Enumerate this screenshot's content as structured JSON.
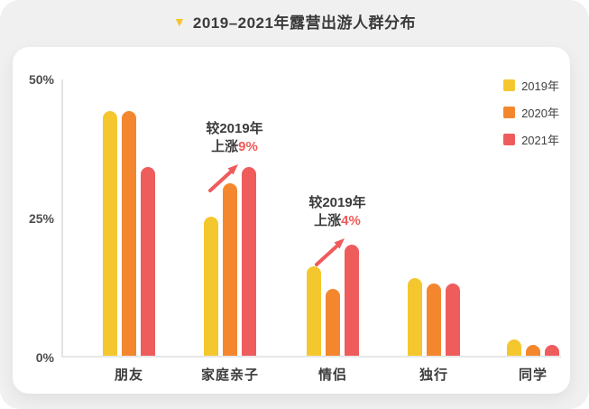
{
  "title": {
    "marker": "▼",
    "text": "2019–2021年露营出游人群分布"
  },
  "legend": [
    {
      "label": "2019年",
      "color": "#f5c72e"
    },
    {
      "label": "2020年",
      "color": "#f4872e"
    },
    {
      "label": "2021年",
      "color": "#ef5c5c"
    }
  ],
  "chart_data": {
    "type": "bar",
    "title": "2019–2021年露营出游人群分布",
    "categories": [
      "朋友",
      "家庭亲子",
      "情侣",
      "独行",
      "同学"
    ],
    "series": [
      {
        "name": "2019年",
        "color": "#f5c72e",
        "values": [
          44,
          25,
          16,
          14,
          3
        ]
      },
      {
        "name": "2020年",
        "color": "#f4872e",
        "values": [
          44,
          31,
          12,
          13,
          2
        ]
      },
      {
        "name": "2021年",
        "color": "#ef5c5c",
        "values": [
          34,
          34,
          20,
          13,
          2
        ]
      }
    ],
    "ylim": [
      0,
      50
    ],
    "yticks": [
      "50%",
      "25%",
      "0%"
    ],
    "grid": false,
    "legend_position": "top-right",
    "annotations": [
      {
        "line1": "较2019年",
        "line2_prefix": "上涨",
        "line2_value": "9%",
        "target_category": "家庭亲子"
      },
      {
        "line1": "较2019年",
        "line2_prefix": "上涨",
        "line2_value": "4%",
        "target_category": "情侣"
      }
    ],
    "annotation_arrow_color": "#ef5b5b"
  }
}
